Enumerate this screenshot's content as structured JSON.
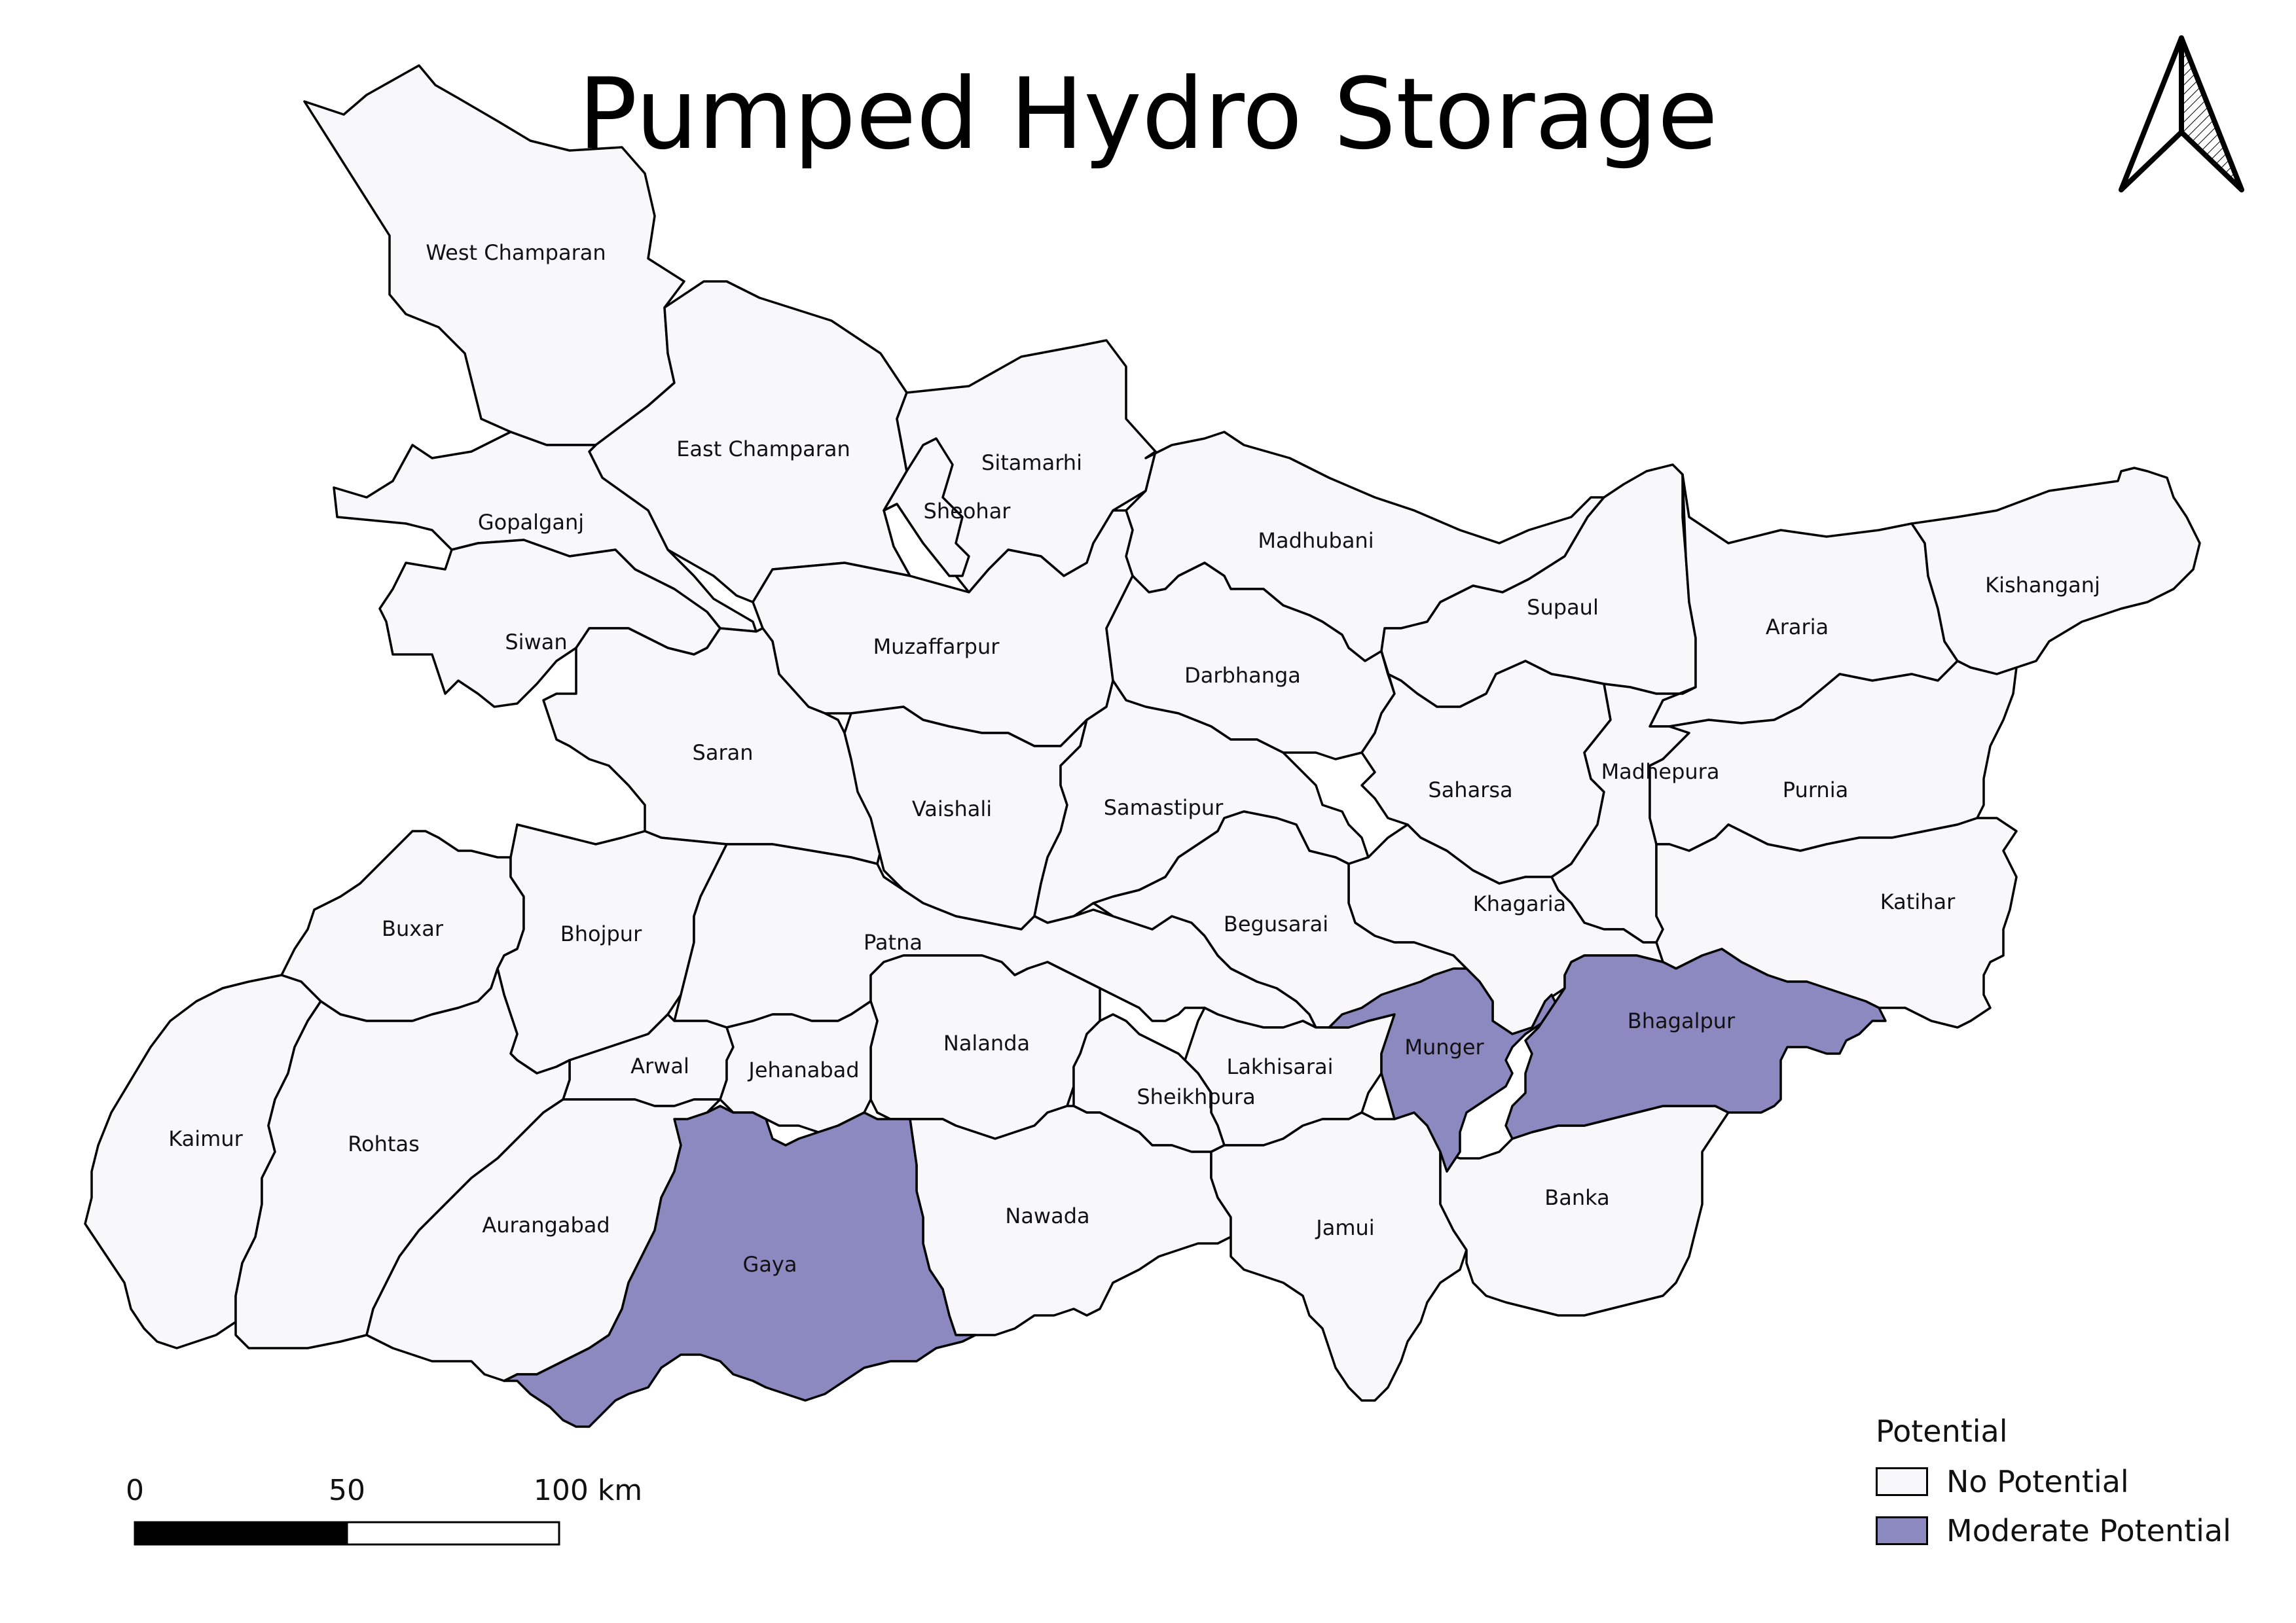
{
  "title": "Pumped Hydro Storage",
  "colors": {
    "no_potential": "#f8f8fb",
    "moderate_potential": "#8b89c0",
    "outline": "#000000"
  },
  "districts": [
    {
      "name": "West Champaran",
      "potential": "No Potential"
    },
    {
      "name": "East Champaran",
      "potential": "No Potential"
    },
    {
      "name": "Sitamarhi",
      "potential": "No Potential"
    },
    {
      "name": "Sheohar",
      "potential": "No Potential"
    },
    {
      "name": "Gopalganj",
      "potential": "No Potential"
    },
    {
      "name": "Madhubani",
      "potential": "No Potential"
    },
    {
      "name": "Supaul",
      "potential": "No Potential"
    },
    {
      "name": "Araria",
      "potential": "No Potential"
    },
    {
      "name": "Kishanganj",
      "potential": "No Potential"
    },
    {
      "name": "Siwan",
      "potential": "No Potential"
    },
    {
      "name": "Muzaffarpur",
      "potential": "No Potential"
    },
    {
      "name": "Darbhanga",
      "potential": "No Potential"
    },
    {
      "name": "Saran",
      "potential": "No Potential"
    },
    {
      "name": "Vaishali",
      "potential": "No Potential"
    },
    {
      "name": "Samastipur",
      "potential": "No Potential"
    },
    {
      "name": "Saharsa",
      "potential": "No Potential"
    },
    {
      "name": "Madhepura",
      "potential": "No Potential"
    },
    {
      "name": "Purnia",
      "potential": "No Potential"
    },
    {
      "name": "Katihar",
      "potential": "No Potential"
    },
    {
      "name": "Khagaria",
      "potential": "No Potential"
    },
    {
      "name": "Buxar",
      "potential": "No Potential"
    },
    {
      "name": "Bhojpur",
      "potential": "No Potential"
    },
    {
      "name": "Patna",
      "potential": "No Potential"
    },
    {
      "name": "Begusarai",
      "potential": "No Potential"
    },
    {
      "name": "Bhagalpur",
      "potential": "Moderate Potential"
    },
    {
      "name": "Munger",
      "potential": "Moderate Potential"
    },
    {
      "name": "Nalanda",
      "potential": "No Potential"
    },
    {
      "name": "Lakhisarai",
      "potential": "No Potential"
    },
    {
      "name": "Arwal",
      "potential": "No Potential"
    },
    {
      "name": "Jehanabad",
      "potential": "No Potential"
    },
    {
      "name": "Sheikhpura",
      "potential": "No Potential"
    },
    {
      "name": "Kaimur",
      "potential": "No Potential"
    },
    {
      "name": "Rohtas",
      "potential": "No Potential"
    },
    {
      "name": "Aurangabad",
      "potential": "No Potential"
    },
    {
      "name": "Gaya",
      "potential": "Moderate Potential"
    },
    {
      "name": "Nawada",
      "potential": "No Potential"
    },
    {
      "name": "Jamui",
      "potential": "No Potential"
    },
    {
      "name": "Banka",
      "potential": "No Potential"
    }
  ],
  "legend": {
    "title": "Potential",
    "items": [
      {
        "label": "No Potential",
        "color": "#f8f8fb"
      },
      {
        "label": "Moderate Potential",
        "color": "#8b89c0"
      }
    ]
  },
  "scale_bar": {
    "labels": [
      "0",
      "50",
      "100 km"
    ]
  },
  "north_arrow": {
    "icon": "north-arrow-icon"
  }
}
